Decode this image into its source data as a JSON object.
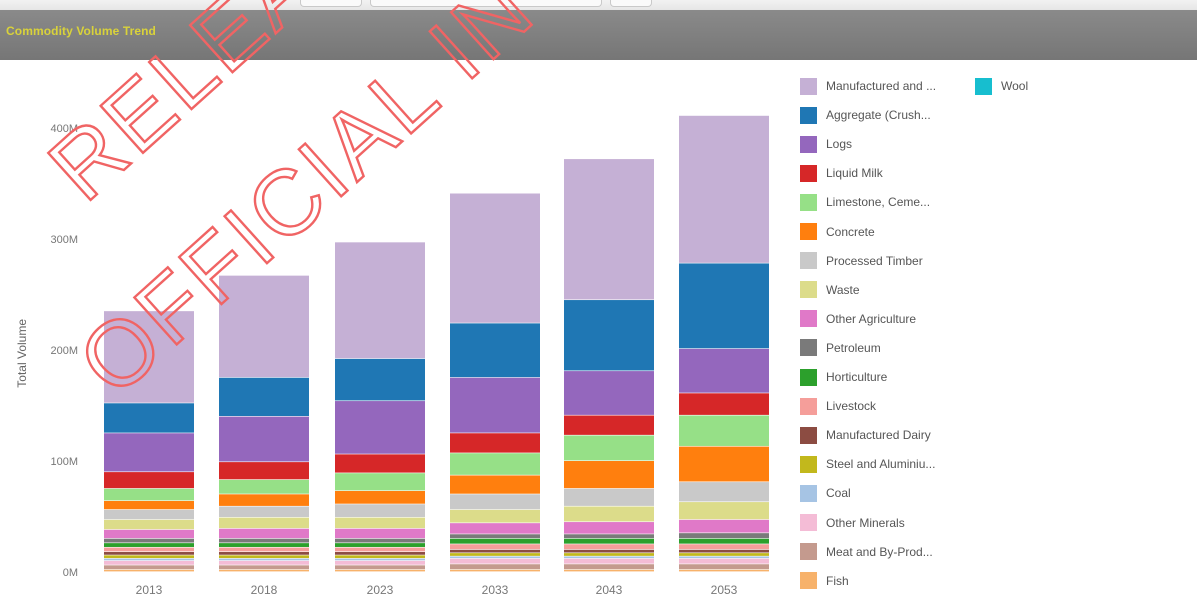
{
  "header": {
    "title": "Commodity Volume Trend"
  },
  "watermark": {
    "line1": "RELEASED",
    "line2": "OFFICIAL IN",
    "color": "#f06464"
  },
  "chart_data": {
    "type": "bar",
    "stacked": true,
    "title": "",
    "xlabel": "",
    "ylabel": "Total Volume",
    "ylim": [
      0,
      430
    ],
    "y_unit": "M",
    "yticks": [
      0,
      100,
      200,
      300,
      400
    ],
    "ytick_labels": [
      "0M",
      "100M",
      "200M",
      "300M",
      "400M"
    ],
    "categories": [
      "2013",
      "2018",
      "2023",
      "2033",
      "2043",
      "2053"
    ],
    "legend_position": "right",
    "grid": false,
    "series": [
      {
        "name": "Fish",
        "color": "#f7b26b",
        "values": [
          2,
          2,
          2,
          2,
          2,
          2
        ]
      },
      {
        "name": "Meat and By-Prod...",
        "color": "#c49a8e",
        "values": [
          4,
          4,
          4,
          5,
          5,
          5
        ]
      },
      {
        "name": "Other Minerals",
        "color": "#f4bcd6",
        "values": [
          4,
          4,
          4,
          5,
          5,
          5
        ]
      },
      {
        "name": "Coal",
        "color": "#a6c4e4",
        "values": [
          2,
          2,
          2,
          2,
          2,
          2
        ]
      },
      {
        "name": "Steel and Aluminiu...",
        "color": "#c2b81c",
        "values": [
          3,
          3,
          3,
          3,
          3,
          3
        ]
      },
      {
        "name": "Manufactured Dairy",
        "color": "#8c4c42",
        "values": [
          3,
          3,
          3,
          3,
          3,
          3
        ]
      },
      {
        "name": "Livestock",
        "color": "#f59e9a",
        "values": [
          4,
          4,
          4,
          5,
          5,
          5
        ]
      },
      {
        "name": "Horticulture",
        "color": "#2ca02c",
        "values": [
          4,
          4,
          4,
          5,
          5,
          5
        ]
      },
      {
        "name": "Petroleum",
        "color": "#7a7a7a",
        "values": [
          4,
          4,
          4,
          4,
          4,
          5
        ]
      },
      {
        "name": "Other Agriculture",
        "color": "#e079c8",
        "values": [
          8,
          9,
          9,
          10,
          11,
          12
        ]
      },
      {
        "name": "Waste",
        "color": "#dcdc8a",
        "values": [
          9,
          10,
          10,
          12,
          14,
          16
        ]
      },
      {
        "name": "Processed Timber",
        "color": "#c9c9c9",
        "values": [
          9,
          10,
          12,
          14,
          16,
          18
        ]
      },
      {
        "name": "Concrete",
        "color": "#ff7f0e",
        "values": [
          8,
          11,
          12,
          17,
          25,
          32
        ]
      },
      {
        "name": "Limestone, Ceme...",
        "color": "#96e087",
        "values": [
          11,
          13,
          16,
          20,
          23,
          28
        ]
      },
      {
        "name": "Liquid Milk",
        "color": "#d62728",
        "values": [
          15,
          16,
          17,
          18,
          18,
          20
        ]
      },
      {
        "name": "Logs",
        "color": "#9467bd",
        "values": [
          35,
          41,
          48,
          50,
          40,
          40
        ]
      },
      {
        "name": "Aggregate (Crush...",
        "color": "#1f77b4",
        "values": [
          27,
          35,
          38,
          49,
          64,
          77
        ]
      },
      {
        "name": "Manufactured and ...",
        "color": "#c5b0d5",
        "values": [
          83,
          92,
          105,
          117,
          127,
          133
        ]
      },
      {
        "name": "Wool",
        "color": "#17becf",
        "values": [
          0,
          0,
          0,
          0,
          0,
          0
        ]
      }
    ],
    "legend_order": [
      "Manufactured and ...",
      "Wool",
      "Aggregate (Crush...",
      "Logs",
      "Liquid Milk",
      "Limestone, Ceme...",
      "Concrete",
      "Processed Timber",
      "Waste",
      "Other Agriculture",
      "Petroleum",
      "Horticulture",
      "Livestock",
      "Manufactured Dairy",
      "Steel and Aluminiu...",
      "Coal",
      "Other Minerals",
      "Meat and By-Prod...",
      "Fish"
    ]
  }
}
